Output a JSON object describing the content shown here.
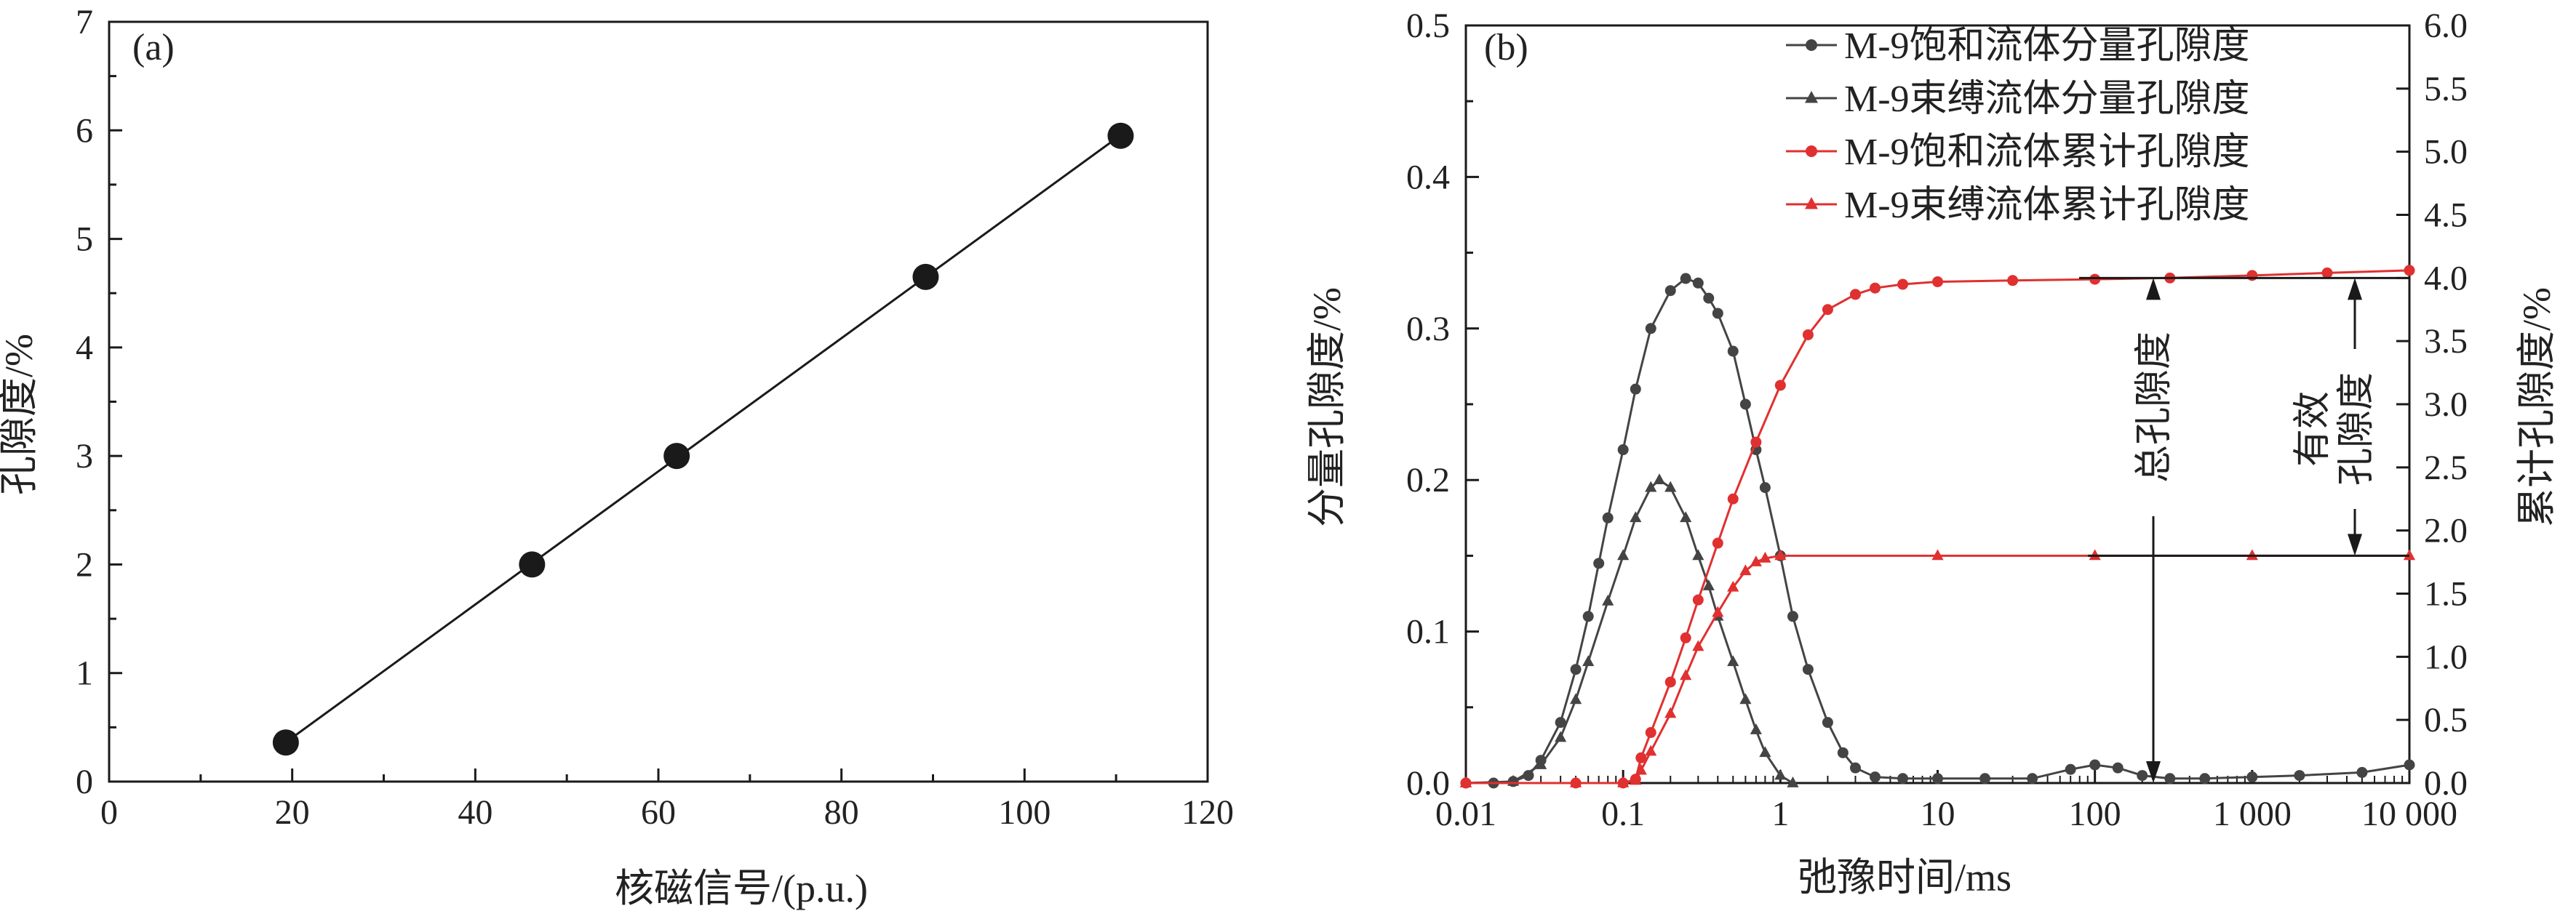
{
  "chart_data": [
    {
      "type": "scatter",
      "panel_label": "(a)",
      "xlabel": "核磁信号/(p.u.)",
      "ylabel": "孔隙度/%",
      "xlim": [
        0,
        120
      ],
      "ylim": [
        0,
        7
      ],
      "x_ticks": [
        "0",
        "20",
        "40",
        "60",
        "80",
        "100",
        "120"
      ],
      "y_ticks": [
        "0",
        "1",
        "2",
        "3",
        "4",
        "5",
        "6",
        "7"
      ],
      "fit_line": true,
      "grid": false,
      "series": [
        {
          "points": [
            [
              19.3,
              0.36
            ],
            [
              46.2,
              2.0
            ],
            [
              62.0,
              3.0
            ],
            [
              89.2,
              4.65
            ],
            [
              110.5,
              5.95
            ]
          ],
          "marker": "circle",
          "color": "#1a1a1a"
        }
      ]
    },
    {
      "type": "line",
      "panel_label": "(b)",
      "xlabel": "弛豫时间/ms",
      "ylabel": "分量孔隙度/%",
      "ylabel_right": "累计孔隙度/%",
      "x_scale": "log",
      "xlim": [
        0.01,
        10000
      ],
      "ylim": [
        0,
        0.5
      ],
      "ylim_right": [
        0,
        6
      ],
      "x_ticks": [
        "0.01",
        "0.1",
        "1",
        "10",
        "100",
        "1 000",
        "10 000"
      ],
      "y_ticks": [
        "0.0",
        "0.1",
        "0.2",
        "0.3",
        "0.4",
        "0.5"
      ],
      "y_ticks_right": [
        "0.0",
        "0.5",
        "1.0",
        "1.5",
        "2.0",
        "2.5",
        "3.0",
        "3.5",
        "4.0",
        "4.5",
        "5.0",
        "5.5",
        "6.0"
      ],
      "legend_position": "top-right",
      "grid": false,
      "series": [
        {
          "name": "M-9饱和流体分量孔隙度",
          "axis": "left",
          "color": "#444444",
          "marker": "circle",
          "points": [
            [
              0.01,
              0.0
            ],
            [
              0.015,
              0.0
            ],
            [
              0.02,
              0.001
            ],
            [
              0.025,
              0.005
            ],
            [
              0.03,
              0.015
            ],
            [
              0.04,
              0.04
            ],
            [
              0.05,
              0.075
            ],
            [
              0.06,
              0.11
            ],
            [
              0.07,
              0.145
            ],
            [
              0.08,
              0.175
            ],
            [
              0.1,
              0.22
            ],
            [
              0.12,
              0.26
            ],
            [
              0.15,
              0.3
            ],
            [
              0.2,
              0.325
            ],
            [
              0.25,
              0.333
            ],
            [
              0.3,
              0.33
            ],
            [
              0.35,
              0.32
            ],
            [
              0.4,
              0.31
            ],
            [
              0.5,
              0.285
            ],
            [
              0.6,
              0.25
            ],
            [
              0.7,
              0.22
            ],
            [
              0.8,
              0.195
            ],
            [
              1.0,
              0.15
            ],
            [
              1.2,
              0.11
            ],
            [
              1.5,
              0.075
            ],
            [
              2.0,
              0.04
            ],
            [
              2.5,
              0.02
            ],
            [
              3.0,
              0.01
            ],
            [
              4.0,
              0.004
            ],
            [
              6.0,
              0.003
            ],
            [
              10.0,
              0.003
            ],
            [
              20.0,
              0.003
            ],
            [
              40.0,
              0.003
            ],
            [
              70.0,
              0.009
            ],
            [
              100.0,
              0.012
            ],
            [
              140.0,
              0.01
            ],
            [
              200.0,
              0.005
            ],
            [
              300.0,
              0.003
            ],
            [
              500.0,
              0.003
            ],
            [
              1000.0,
              0.004
            ],
            [
              2000.0,
              0.005
            ],
            [
              5000.0,
              0.007
            ],
            [
              10000.0,
              0.012
            ]
          ]
        },
        {
          "name": "M-9束缚流体分量孔隙度",
          "axis": "left",
          "color": "#444444",
          "marker": "triangle",
          "points": [
            [
              0.01,
              0.0
            ],
            [
              0.02,
              0.001
            ],
            [
              0.03,
              0.012
            ],
            [
              0.04,
              0.03
            ],
            [
              0.05,
              0.055
            ],
            [
              0.06,
              0.08
            ],
            [
              0.08,
              0.12
            ],
            [
              0.1,
              0.15
            ],
            [
              0.12,
              0.175
            ],
            [
              0.15,
              0.195
            ],
            [
              0.17,
              0.2
            ],
            [
              0.2,
              0.195
            ],
            [
              0.25,
              0.175
            ],
            [
              0.3,
              0.15
            ],
            [
              0.35,
              0.13
            ],
            [
              0.4,
              0.11
            ],
            [
              0.5,
              0.08
            ],
            [
              0.6,
              0.055
            ],
            [
              0.7,
              0.035
            ],
            [
              0.8,
              0.02
            ],
            [
              1.0,
              0.005
            ],
            [
              1.2,
              0.0
            ]
          ]
        },
        {
          "name": "M-9饱和流体累计孔隙度",
          "axis": "right",
          "color": "#e03030",
          "marker": "circle",
          "points": [
            [
              0.01,
              0.0
            ],
            [
              0.05,
              0.0
            ],
            [
              0.1,
              0.0
            ],
            [
              0.12,
              0.03
            ],
            [
              0.13,
              0.2
            ],
            [
              0.15,
              0.4
            ],
            [
              0.2,
              0.8
            ],
            [
              0.25,
              1.15
            ],
            [
              0.3,
              1.45
            ],
            [
              0.4,
              1.9
            ],
            [
              0.5,
              2.25
            ],
            [
              0.7,
              2.7
            ],
            [
              1.0,
              3.15
            ],
            [
              1.5,
              3.55
            ],
            [
              2.0,
              3.75
            ],
            [
              3.0,
              3.87
            ],
            [
              4.0,
              3.92
            ],
            [
              6.0,
              3.95
            ],
            [
              10.0,
              3.97
            ],
            [
              30.0,
              3.98
            ],
            [
              100.0,
              3.99
            ],
            [
              300.0,
              4.0
            ],
            [
              1000.0,
              4.02
            ],
            [
              3000.0,
              4.04
            ],
            [
              10000.0,
              4.06
            ]
          ]
        },
        {
          "name": "M-9束缚流体累计孔隙度",
          "axis": "right",
          "color": "#e03030",
          "marker": "triangle",
          "points": [
            [
              0.01,
              0.0
            ],
            [
              0.05,
              0.0
            ],
            [
              0.1,
              0.0
            ],
            [
              0.12,
              0.02
            ],
            [
              0.13,
              0.1
            ],
            [
              0.15,
              0.25
            ],
            [
              0.2,
              0.55
            ],
            [
              0.25,
              0.85
            ],
            [
              0.3,
              1.08
            ],
            [
              0.4,
              1.35
            ],
            [
              0.5,
              1.55
            ],
            [
              0.6,
              1.68
            ],
            [
              0.7,
              1.75
            ],
            [
              0.8,
              1.78
            ],
            [
              1.0,
              1.8
            ],
            [
              10.0,
              1.8
            ],
            [
              100.0,
              1.8
            ],
            [
              1000.0,
              1.8
            ],
            [
              10000.0,
              1.8
            ]
          ]
        }
      ],
      "annotations": [
        {
          "text": "总孔隙度",
          "value_right": 4.0
        },
        {
          "text_lines": [
            "有效",
            "孔隙度"
          ],
          "from_right": 1.8,
          "to_right": 4.0
        }
      ]
    }
  ]
}
